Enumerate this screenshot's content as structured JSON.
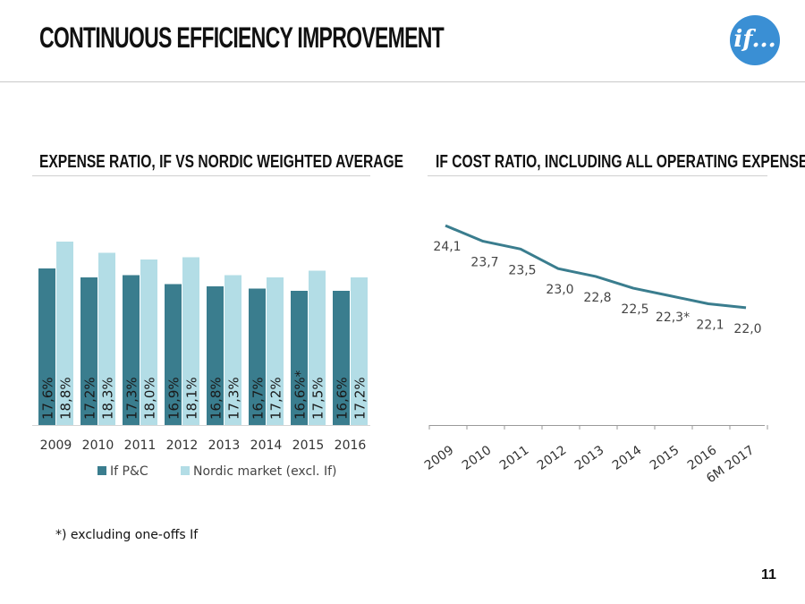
{
  "page": {
    "title": "CONTINUOUS EFFICIENCY IMPROVEMENT",
    "logo_text": "if...",
    "footnote": "*) excluding one-offs If",
    "page_number": "11"
  },
  "colors": {
    "dark": "#3a7d8e",
    "light": "#b3dde6",
    "axis": "#9a9a9a",
    "logo": "#3a8fd4"
  },
  "chart_data": [
    {
      "type": "bar",
      "title": "EXPENSE RATIO, IF VS NORDIC WEIGHTED AVERAGE",
      "categories": [
        "2009",
        "2010",
        "2011",
        "2012",
        "2013",
        "2014",
        "2015",
        "2016"
      ],
      "series": [
        {
          "name": "If P&C",
          "values": [
            17.6,
            17.2,
            17.3,
            16.9,
            16.8,
            16.7,
            16.6,
            16.6
          ],
          "labels": [
            "17,6%",
            "17,2%",
            "17,3%",
            "16,9%",
            "16,8%",
            "16,7%",
            "16,6%*",
            "16,6%"
          ]
        },
        {
          "name": "Nordic market (excl. If)",
          "values": [
            18.8,
            18.3,
            18.0,
            18.1,
            17.3,
            17.2,
            17.5,
            17.2
          ],
          "labels": [
            "18,8%",
            "18,3%",
            "18,0%",
            "18,1%",
            "17,3%",
            "17,2%",
            "17,5%",
            "17,2%"
          ]
        }
      ],
      "ylim": [
        10.6,
        19.8
      ],
      "legend": "bottom"
    },
    {
      "type": "line",
      "title": "IF COST RATIO, INCLUDING ALL OPERATING EXPENSES",
      "categories": [
        "2009",
        "2010",
        "2011",
        "2012",
        "2013",
        "2014",
        "2015",
        "2016",
        "6M 2017"
      ],
      "values": [
        24.1,
        23.7,
        23.5,
        23.0,
        22.8,
        22.5,
        22.3,
        22.1,
        22.0
      ],
      "labels": [
        "24,1",
        "23,7",
        "23,5",
        "23,0",
        "22,8",
        "22,5",
        "22,3*",
        "22,1",
        "22,0"
      ],
      "ylim": [
        19.0,
        24.4
      ]
    }
  ]
}
